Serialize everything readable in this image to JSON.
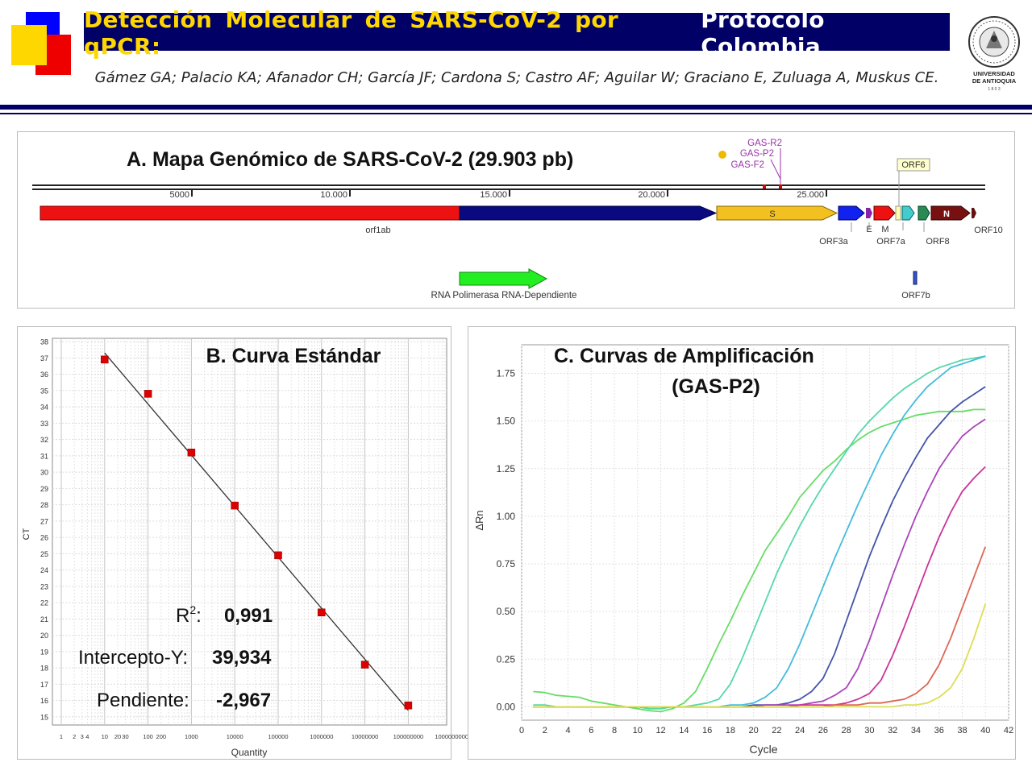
{
  "header": {
    "title_main": "Detección Molecular de SARS-CoV-2 por qPCR:",
    "title_sub": "Protocolo Colombia",
    "authors": "Gámez GA; Palacio KA; Afanador CH; García JF; Cardona S; Castro AF; Aguilar W; Graciano E, Zuluaga A, Muskus CE.",
    "logo_text_1": "UNIVERSIDAD",
    "logo_text_2": "DE ANTIOQUIA",
    "logo_text_3": "1 8 0 3"
  },
  "colors": {
    "navy": "#000066",
    "title_yellow": "#ffd700",
    "marker_red": "#dd0000"
  },
  "panel_a": {
    "title": "A. Mapa Genómico de SARS-CoV-2 (29.903 pb)",
    "ticks": [
      "5000",
      "10.000",
      "15.000",
      "20.000",
      "25.000"
    ],
    "primers": [
      "GAS-R2",
      "GAS-P2",
      "GAS-F2"
    ],
    "genes": {
      "orf1ab": "orf1ab",
      "S": "S",
      "ORF3a": "ORF3a",
      "E": "E",
      "M": "M",
      "ORF6": "ORF6",
      "ORF7a": "ORF7a",
      "ORF8": "ORF8",
      "N": "N",
      "ORF10": "ORF10",
      "ORF7b": "ORF7b"
    },
    "rdrp": "RNA Polimerasa RNA-Dependiente"
  },
  "panel_b": {
    "title": "B. Curva Estándar",
    "ylabel": "CT",
    "xlabel": "Quantity",
    "r2_label": "R",
    "r2_sup": "2",
    "r2_colon": ":",
    "r2_value": "0,991",
    "intercept_label": "Intercepto-Y:",
    "intercept_value": "39,934",
    "slope_label": "Pendiente:",
    "slope_value": "-2,967"
  },
  "panel_c": {
    "title_line1": "C.  Curvas de Amplificación",
    "title_line2": "(GAS-P2)",
    "ylabel": "ΔRn",
    "xlabel": "Cycle"
  },
  "chart_data": [
    {
      "type": "scatter",
      "title": "B. Curva Estándar",
      "xlabel": "Quantity",
      "ylabel": "CT",
      "x_scale": "log",
      "x_ticks": [
        "1",
        "2",
        "3",
        "4",
        "10",
        "20",
        "30",
        "100",
        "200",
        "1000",
        "10000",
        "100000",
        "1000000",
        "10000000",
        "100000000",
        "1000000000"
      ],
      "y_ticks": [
        "15",
        "16",
        "17",
        "18",
        "19",
        "20",
        "21",
        "22",
        "23",
        "24",
        "25",
        "26",
        "27",
        "28",
        "29",
        "30",
        "31",
        "32",
        "33",
        "34",
        "35",
        "36",
        "37",
        "38"
      ],
      "ylim": [
        14.5,
        38.2
      ],
      "points": [
        {
          "x": 10,
          "y": 36.9
        },
        {
          "x": 100,
          "y": 34.8
        },
        {
          "x": 1000,
          "y": 31.2
        },
        {
          "x": 10000,
          "y": 27.95
        },
        {
          "x": 100000,
          "y": 24.9
        },
        {
          "x": 1000000,
          "y": 21.4
        },
        {
          "x": 10000000,
          "y": 18.2
        },
        {
          "x": 100000000,
          "y": 15.7
        }
      ],
      "fit": {
        "slope": -2.967,
        "intercept": 39.934,
        "r2": 0.991
      },
      "grid": true
    },
    {
      "type": "line",
      "title": "C.  Curvas de Amplificación (GAS-P2)",
      "xlabel": "Cycle",
      "ylabel": "ΔRn",
      "x_ticks": [
        "0",
        "2",
        "4",
        "6",
        "8",
        "10",
        "12",
        "14",
        "16",
        "18",
        "20",
        "22",
        "24",
        "26",
        "28",
        "30",
        "32",
        "34",
        "36",
        "38",
        "40",
        "42"
      ],
      "y_ticks": [
        "0.00",
        "0.25",
        "0.50",
        "0.75",
        "1.00",
        "1.25",
        "1.50",
        "1.75"
      ],
      "xlim": [
        0,
        42
      ],
      "ylim": [
        -0.07,
        1.9
      ],
      "grid": true,
      "x": [
        1,
        2,
        3,
        4,
        5,
        6,
        7,
        8,
        9,
        10,
        11,
        12,
        13,
        14,
        15,
        16,
        17,
        18,
        19,
        20,
        21,
        22,
        23,
        24,
        25,
        26,
        27,
        28,
        29,
        30,
        31,
        32,
        33,
        34,
        35,
        36,
        37,
        38,
        39,
        40
      ],
      "series": [
        {
          "color": "#66dd66",
          "values": [
            0.08,
            0.075,
            0.06,
            0.055,
            0.05,
            0.03,
            0.02,
            0.01,
            0.0,
            -0.01,
            -0.02,
            -0.025,
            -0.01,
            0.02,
            0.08,
            0.2,
            0.33,
            0.45,
            0.58,
            0.7,
            0.82,
            0.91,
            1.0,
            1.1,
            1.17,
            1.24,
            1.29,
            1.35,
            1.4,
            1.44,
            1.47,
            1.49,
            1.51,
            1.53,
            1.54,
            1.55,
            1.55,
            1.55,
            1.56,
            1.56
          ]
        },
        {
          "color": "#55d8a8",
          "values": [
            0.01,
            0.01,
            0.0,
            0.0,
            0.0,
            0.0,
            0.0,
            0.0,
            0.0,
            0.0,
            -0.01,
            -0.01,
            0.0,
            0.0,
            0.01,
            0.02,
            0.04,
            0.12,
            0.25,
            0.4,
            0.55,
            0.7,
            0.83,
            0.95,
            1.06,
            1.16,
            1.25,
            1.34,
            1.43,
            1.5,
            1.56,
            1.62,
            1.67,
            1.71,
            1.75,
            1.78,
            1.8,
            1.82,
            1.83,
            1.84
          ]
        },
        {
          "color": "#44bbdd",
          "values": [
            0.0,
            0.0,
            0.0,
            0.0,
            0.0,
            0.0,
            0.0,
            0.0,
            0.0,
            0.0,
            0.0,
            0.0,
            0.0,
            0.0,
            0.0,
            0.0,
            0.0,
            0.01,
            0.01,
            0.02,
            0.05,
            0.1,
            0.2,
            0.33,
            0.48,
            0.63,
            0.78,
            0.92,
            1.06,
            1.19,
            1.32,
            1.43,
            1.53,
            1.61,
            1.68,
            1.73,
            1.78,
            1.8,
            1.82,
            1.84
          ]
        },
        {
          "color": "#4455aa",
          "values": [
            0.0,
            0.0,
            0.0,
            0.0,
            0.0,
            0.0,
            0.0,
            0.0,
            0.0,
            0.0,
            0.0,
            0.0,
            0.0,
            0.0,
            0.0,
            0.0,
            0.0,
            0.0,
            0.0,
            0.01,
            0.01,
            0.01,
            0.02,
            0.04,
            0.08,
            0.15,
            0.28,
            0.45,
            0.62,
            0.79,
            0.94,
            1.08,
            1.2,
            1.31,
            1.41,
            1.48,
            1.55,
            1.6,
            1.64,
            1.68
          ]
        },
        {
          "color": "#aa44bb",
          "values": [
            0.0,
            0.0,
            0.0,
            0.0,
            0.0,
            0.0,
            0.0,
            0.0,
            0.0,
            0.0,
            0.0,
            0.0,
            0.0,
            0.0,
            0.0,
            0.0,
            0.0,
            0.0,
            0.0,
            0.0,
            0.01,
            0.01,
            0.01,
            0.01,
            0.02,
            0.03,
            0.06,
            0.1,
            0.2,
            0.35,
            0.52,
            0.69,
            0.85,
            1.0,
            1.13,
            1.25,
            1.34,
            1.42,
            1.47,
            1.51
          ]
        },
        {
          "color": "#cc3399",
          "values": [
            0.0,
            0.0,
            0.0,
            0.0,
            0.0,
            0.0,
            0.0,
            0.0,
            0.0,
            0.0,
            0.0,
            0.0,
            0.0,
            0.0,
            0.0,
            0.0,
            0.0,
            0.0,
            0.0,
            0.0,
            0.0,
            0.0,
            0.0,
            0.01,
            0.01,
            0.01,
            0.01,
            0.02,
            0.04,
            0.07,
            0.14,
            0.27,
            0.42,
            0.58,
            0.74,
            0.89,
            1.02,
            1.13,
            1.2,
            1.26
          ]
        },
        {
          "color": "#dd6655",
          "values": [
            0.0,
            0.0,
            0.0,
            0.0,
            0.0,
            0.0,
            0.0,
            0.0,
            0.0,
            0.0,
            0.0,
            0.0,
            0.0,
            0.0,
            0.0,
            0.0,
            0.0,
            0.0,
            0.0,
            0.0,
            0.0,
            0.0,
            0.0,
            0.0,
            0.0,
            0.0,
            0.01,
            0.01,
            0.01,
            0.02,
            0.02,
            0.03,
            0.04,
            0.07,
            0.12,
            0.22,
            0.36,
            0.52,
            0.68,
            0.84
          ]
        },
        {
          "color": "#dddd55",
          "values": [
            0.0,
            0.0,
            0.0,
            0.0,
            0.0,
            0.0,
            0.0,
            0.0,
            0.0,
            0.0,
            0.0,
            0.0,
            0.0,
            0.0,
            0.0,
            0.0,
            0.0,
            0.0,
            0.0,
            0.0,
            0.0,
            0.0,
            0.0,
            0.0,
            0.0,
            0.0,
            0.0,
            0.0,
            0.0,
            0.0,
            0.0,
            0.0,
            0.01,
            0.01,
            0.02,
            0.05,
            0.1,
            0.2,
            0.36,
            0.54
          ]
        }
      ]
    }
  ]
}
